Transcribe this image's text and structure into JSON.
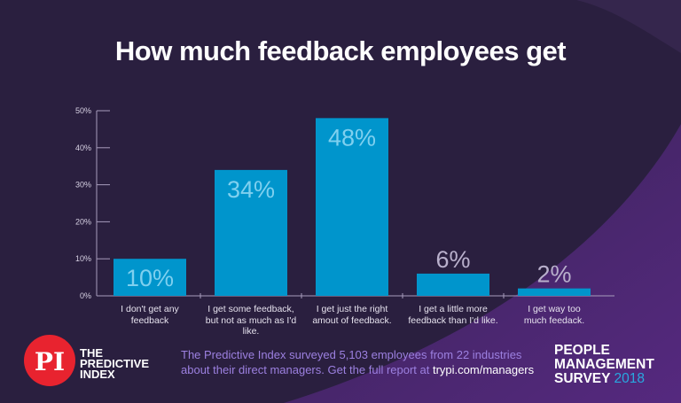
{
  "title": "How much feedback employees get",
  "chart_data": {
    "type": "bar",
    "categories": [
      "I don't get any feedback",
      "I get some feedback, but not as much as I'd like.",
      "I get just the right amout of feedback.",
      "I get a little more feedback than I'd like.",
      "I get way too much feedack."
    ],
    "category_lines": [
      [
        "I don't get any",
        "feedback"
      ],
      [
        "I get some feedback,",
        "but not as much as I'd",
        "like."
      ],
      [
        "I get just the right",
        "amout of feedback."
      ],
      [
        "I get a little more",
        "feedback than I'd like."
      ],
      [
        "I get way too",
        "much feedack."
      ]
    ],
    "values": [
      10,
      34,
      48,
      6,
      2
    ],
    "data_labels": [
      "10%",
      "34%",
      "48%",
      "6%",
      "2%"
    ],
    "yticks": [
      "0%",
      "10%",
      "20%",
      "30%",
      "40%",
      "50%"
    ],
    "ylim": [
      0,
      50
    ],
    "grid": false,
    "bar_color": "#0095cc",
    "inside_label_color": "#7fd0ef",
    "outside_label_color": "#b9b0cc"
  },
  "footer": {
    "logo_mark": "PI",
    "logo_lines": [
      "THE",
      "PREDICTIVE",
      "INDEX"
    ],
    "text_line1": "The Predictive Index surveyed 5,103 employees from 22 industries",
    "text_line2_prefix": "about their direct managers. Get the full report at ",
    "text_link": "trypi.com/managers",
    "survey_lines": [
      "PEOPLE",
      "MANAGEMENT",
      "SURVEY"
    ],
    "survey_year": "2018"
  },
  "colors": {
    "background": "#2a1f3f",
    "accent_purple": "#5b2a86",
    "logo_red": "#e8232f",
    "year_blue": "#29a8e0"
  }
}
